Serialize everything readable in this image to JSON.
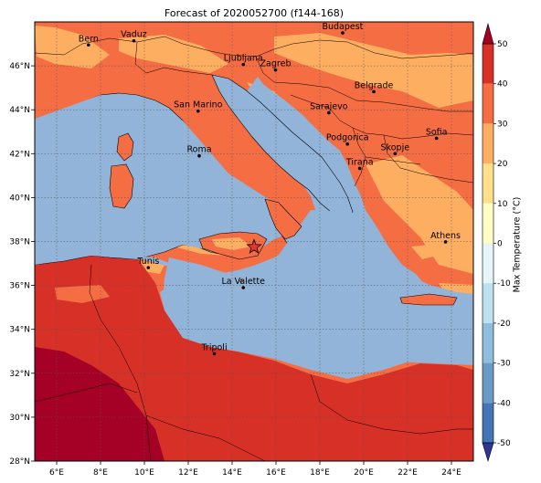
{
  "title": "Forecast of 2020052700 (f144-168)",
  "map": {
    "lon_range": [
      5,
      25
    ],
    "lat_range": [
      28,
      48
    ],
    "lon_ticks": [
      "6°E",
      "8°E",
      "10°E",
      "12°E",
      "14°E",
      "16°E",
      "18°E",
      "20°E",
      "22°E",
      "24°E"
    ],
    "lat_ticks": [
      "28°N",
      "30°N",
      "32°N",
      "34°N",
      "36°N",
      "38°N",
      "40°N",
      "42°N",
      "44°N",
      "46°N"
    ],
    "sea_color": "#92b4d8",
    "cities": [
      {
        "name": "Bern",
        "lon": 7.45,
        "lat": 46.95
      },
      {
        "name": "Vaduz",
        "lon": 9.52,
        "lat": 47.14
      },
      {
        "name": "Budapest",
        "lon": 19.04,
        "lat": 47.5
      },
      {
        "name": "Ljubljana",
        "lon": 14.51,
        "lat": 46.06
      },
      {
        "name": "Zagreb",
        "lon": 15.98,
        "lat": 45.81
      },
      {
        "name": "Belgrade",
        "lon": 20.46,
        "lat": 44.82
      },
      {
        "name": "San Marino",
        "lon": 12.45,
        "lat": 43.94
      },
      {
        "name": "Sarajevo",
        "lon": 18.41,
        "lat": 43.86
      },
      {
        "name": "Sofia",
        "lon": 23.32,
        "lat": 42.7
      },
      {
        "name": "Roma",
        "lon": 12.5,
        "lat": 41.9
      },
      {
        "name": "Podgorica",
        "lon": 19.26,
        "lat": 42.44
      },
      {
        "name": "Skopje",
        "lon": 21.43,
        "lat": 42.0
      },
      {
        "name": "Tirana",
        "lon": 19.82,
        "lat": 41.33
      },
      {
        "name": "Athens",
        "lon": 23.73,
        "lat": 37.98
      },
      {
        "name": "Tunis",
        "lon": 10.18,
        "lat": 36.81
      },
      {
        "name": "La Valette",
        "lon": 14.51,
        "lat": 35.9
      },
      {
        "name": "Tripoli",
        "lon": 13.19,
        "lat": 32.89
      }
    ],
    "star": {
      "lon": 15.0,
      "lat": 37.75,
      "color": "#e8352b"
    }
  },
  "colorbar": {
    "label": "Max Temperature (°C)",
    "ticks": [
      "-50",
      "-40",
      "-30",
      "-20",
      "-10",
      "0",
      "10",
      "20",
      "30",
      "40",
      "50"
    ],
    "colors": [
      "#313695",
      "#4575b4",
      "#74add1",
      "#abd9e9",
      "#e0f3f8",
      "#ffffbf",
      "#fee090",
      "#fdae61",
      "#f46d43",
      "#d73027",
      "#a50026"
    ]
  }
}
